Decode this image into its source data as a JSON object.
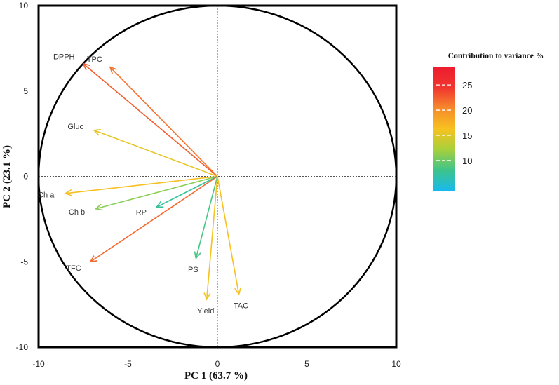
{
  "chart_data": {
    "type": "correlation-circle",
    "title": "",
    "xlabel": "PC 1 (63.7 %)",
    "ylabel": "PC 2 (23.1 %)",
    "xlim": [
      -10,
      10
    ],
    "ylim": [
      -10,
      10
    ],
    "xticks": [
      -10,
      -5,
      0,
      5,
      10
    ],
    "yticks": [
      -10,
      -5,
      0,
      5,
      10
    ],
    "circle_radius": 10,
    "variables": [
      {
        "name": "DPPH",
        "x": -7.5,
        "y": 6.6,
        "contribution": 22.5
      },
      {
        "name": "TPC",
        "x": -6.0,
        "y": 6.4,
        "contribution": 21.5
      },
      {
        "name": "Gluc",
        "x": -6.9,
        "y": 2.7,
        "contribution": 15.5
      },
      {
        "name": "Ch a",
        "x": -8.5,
        "y": -1.0,
        "contribution": 16.5
      },
      {
        "name": "Ch b",
        "x": -6.8,
        "y": -1.9,
        "contribution": 11.0
      },
      {
        "name": "RP",
        "x": -3.4,
        "y": -1.8,
        "contribution": 7.5
      },
      {
        "name": "TFC",
        "x": -7.1,
        "y": -5.0,
        "contribution": 22.0
      },
      {
        "name": "PS",
        "x": -1.2,
        "y": -4.8,
        "contribution": 8.5
      },
      {
        "name": "Yield",
        "x": -0.6,
        "y": -7.2,
        "contribution": 16.0
      },
      {
        "name": "TAC",
        "x": 1.2,
        "y": -6.9,
        "contribution": 16.5
      }
    ],
    "colorbar": {
      "title": "Contribution to variance %",
      "min": 4,
      "max": 28.5,
      "ticks": [
        10,
        15,
        20,
        25
      ],
      "colors": [
        "#18b9ee",
        "#3dc48b",
        "#a7d03c",
        "#f7c21f",
        "#f68b2c",
        "#f1362f",
        "#ed1c2e"
      ]
    }
  }
}
